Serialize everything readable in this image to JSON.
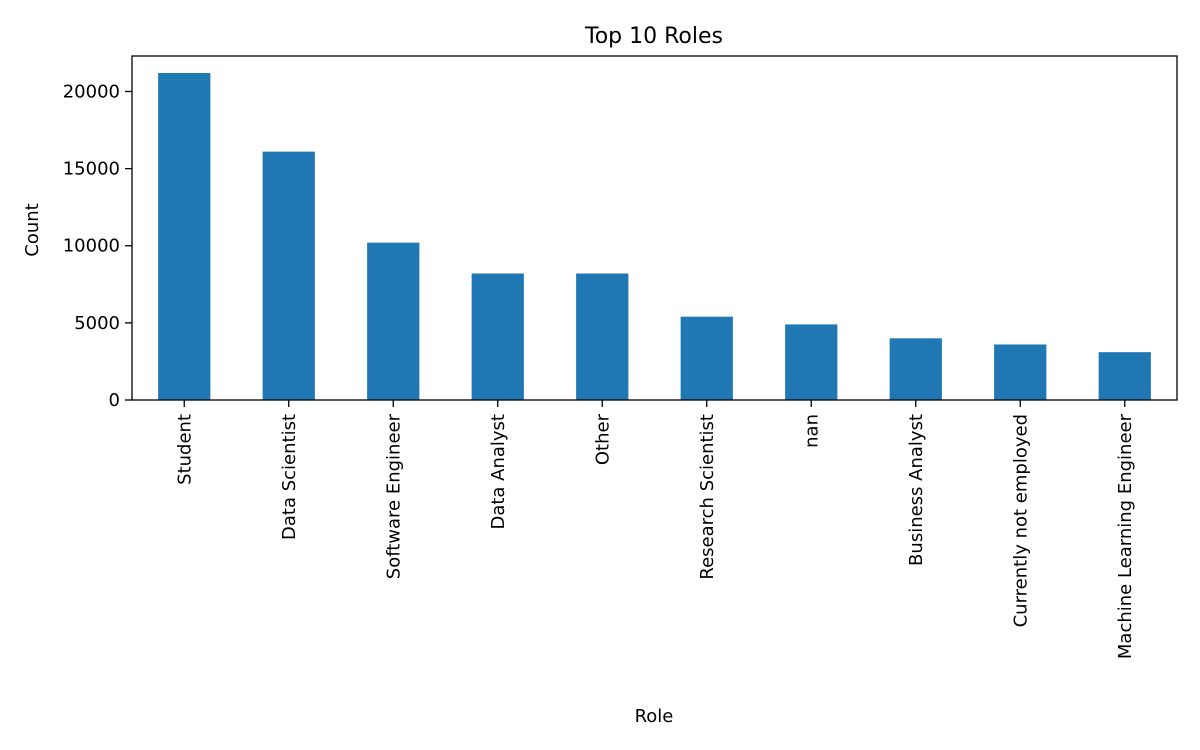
{
  "chart_data": {
    "type": "bar",
    "title": "Top 10 Roles",
    "xlabel": "Role",
    "ylabel": "Count",
    "categories": [
      "Student",
      "Data Scientist",
      "Software Engineer",
      "Data Analyst",
      "Other",
      "Research Scientist",
      "nan",
      "Business Analyst",
      "Currently not employed",
      "Machine Learning Engineer"
    ],
    "values": [
      21200,
      16100,
      10200,
      8200,
      8200,
      5400,
      4900,
      4000,
      3600,
      3100
    ],
    "ylim": [
      0,
      22300
    ],
    "yticks": [
      0,
      5000,
      10000,
      15000,
      20000
    ],
    "bar_color": "#1f77b4",
    "grid": false,
    "legend": "none"
  }
}
